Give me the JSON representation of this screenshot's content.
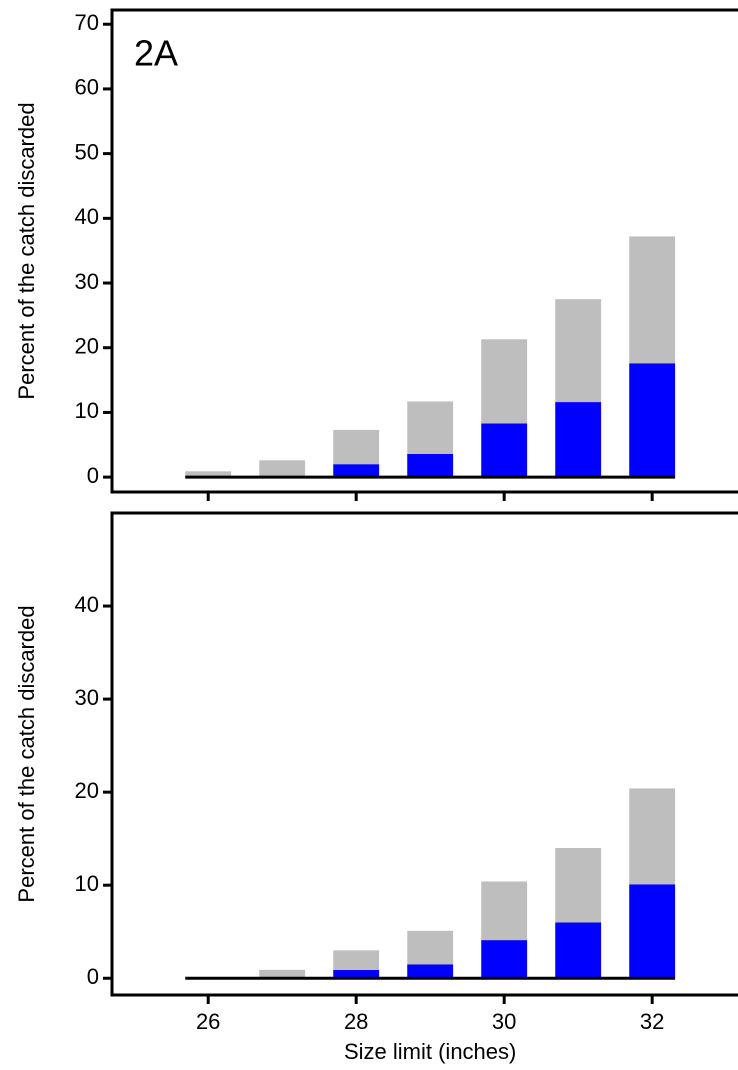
{
  "chart_data": [
    {
      "type": "bar",
      "stacked": true,
      "annotation": "2A",
      "ylabel": "Percent of the catch discarded",
      "x": [
        26,
        27,
        28,
        29,
        30,
        31,
        32
      ],
      "series": [
        {
          "color": "#0000ff",
          "values": [
            0.05,
            0.2,
            2.0,
            3.6,
            8.3,
            11.6,
            17.6
          ]
        },
        {
          "color": "#bebebe",
          "values": [
            0.85,
            2.4,
            5.3,
            8.1,
            13.0,
            15.9,
            19.6
          ]
        }
      ],
      "xlim": [
        24.7,
        33.16
      ],
      "xticks": [
        26,
        28,
        30,
        32
      ],
      "show_xtick_labels": false,
      "ylim": [
        -2.3,
        72.2
      ],
      "yticks": [
        0,
        10,
        20,
        30,
        40,
        50,
        60,
        70
      ]
    },
    {
      "type": "bar",
      "stacked": true,
      "ylabel": "Percent of the catch discarded",
      "xlabel": "Size limit (inches)",
      "x": [
        26,
        27,
        28,
        29,
        30,
        31,
        32
      ],
      "series": [
        {
          "color": "#0000ff",
          "values": [
            0.05,
            0.02,
            0.9,
            1.5,
            4.1,
            6.0,
            10.1
          ]
        },
        {
          "color": "#bebebe",
          "values": [
            0.05,
            0.88,
            2.1,
            3.6,
            6.3,
            8.0,
            10.3
          ]
        }
      ],
      "xlim": [
        24.7,
        33.16
      ],
      "xticks": [
        26,
        28,
        30,
        32
      ],
      "show_xtick_labels": true,
      "ylim": [
        -1.8,
        50
      ],
      "yticks": [
        0,
        10,
        20,
        30,
        40
      ]
    }
  ]
}
